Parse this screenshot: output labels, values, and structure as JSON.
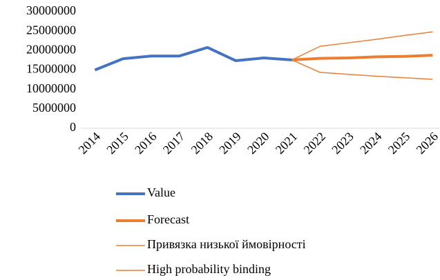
{
  "chart_data": {
    "type": "line",
    "categories": [
      "2014",
      "2015",
      "2016",
      "2017",
      "2018",
      "2019",
      "2020",
      "2021",
      "2022",
      "2023",
      "2024",
      "2025",
      "2026"
    ],
    "series": [
      {
        "name": "Value",
        "color": "#4472c4",
        "width": 4,
        "values": [
          15000000,
          17900000,
          18600000,
          18600000,
          20800000,
          17400000,
          18100000,
          17600000,
          null,
          null,
          null,
          null,
          null
        ]
      },
      {
        "name": "Forecast",
        "color": "#ed7d31",
        "width": 4,
        "values": [
          null,
          null,
          null,
          null,
          null,
          null,
          null,
          17600000,
          18000000,
          18100000,
          18400000,
          18500000,
          18800000
        ]
      },
      {
        "name": "Привязка низької ймовірності",
        "color": "#ed7d31",
        "width": 1.5,
        "values": [
          null,
          null,
          null,
          null,
          null,
          null,
          null,
          17600000,
          14400000,
          13900000,
          13400000,
          13000000,
          12600000
        ]
      },
      {
        "name": "High probability binding",
        "color": "#ed7d31",
        "width": 1.5,
        "values": [
          null,
          null,
          null,
          null,
          null,
          null,
          null,
          17600000,
          21100000,
          22000000,
          22900000,
          23900000,
          24800000
        ]
      }
    ],
    "ylim": [
      0,
      30000000
    ],
    "yticks": [
      0,
      5000000,
      10000000,
      15000000,
      20000000,
      25000000,
      30000000
    ],
    "legend": "bottom"
  }
}
